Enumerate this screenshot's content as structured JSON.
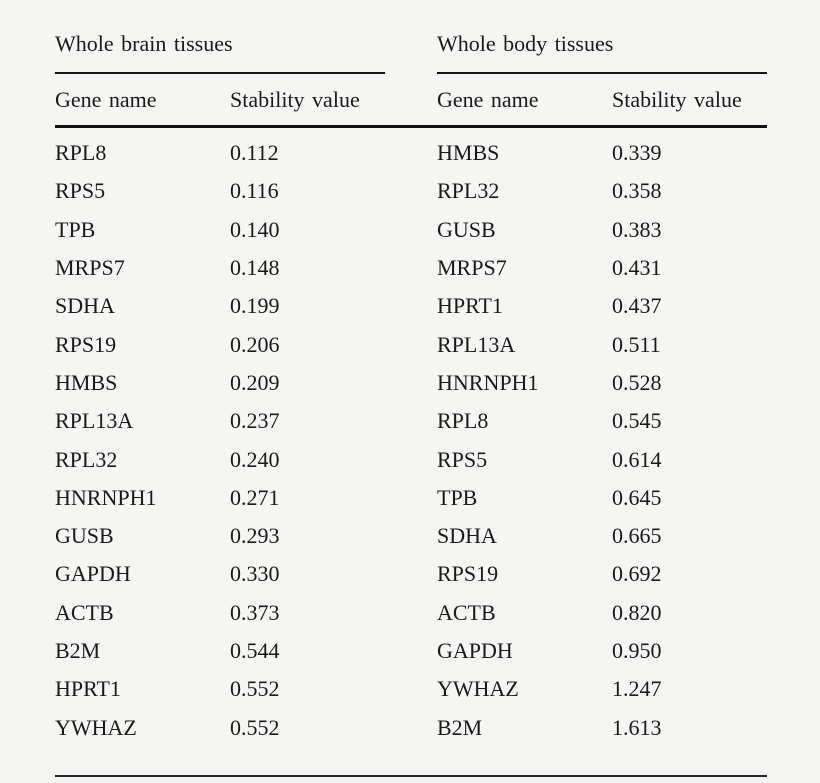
{
  "page": {
    "background_color": "#f5f5f4",
    "text_color": "#1a1a1a",
    "rule_color": "#111111"
  },
  "table": {
    "panels": [
      {
        "group_header": "Whole brain tissues",
        "columns": {
          "gene": "Gene name",
          "value": "Stability value"
        },
        "rows": [
          {
            "gene": "RPL8",
            "value": "0.112"
          },
          {
            "gene": "RPS5",
            "value": "0.116"
          },
          {
            "gene": "TPB",
            "value": "0.140"
          },
          {
            "gene": "MRPS7",
            "value": "0.148"
          },
          {
            "gene": "SDHA",
            "value": "0.199"
          },
          {
            "gene": "RPS19",
            "value": "0.206"
          },
          {
            "gene": "HMBS",
            "value": "0.209"
          },
          {
            "gene": "RPL13A",
            "value": "0.237"
          },
          {
            "gene": "RPL32",
            "value": "0.240"
          },
          {
            "gene": "HNRNPH1",
            "value": "0.271"
          },
          {
            "gene": "GUSB",
            "value": "0.293"
          },
          {
            "gene": "GAPDH",
            "value": "0.330"
          },
          {
            "gene": "ACTB",
            "value": "0.373"
          },
          {
            "gene": "B2M",
            "value": "0.544"
          },
          {
            "gene": "HPRT1",
            "value": "0.552"
          },
          {
            "gene": "YWHAZ",
            "value": "0.552"
          }
        ]
      },
      {
        "group_header": "Whole body tissues",
        "columns": {
          "gene": "Gene name",
          "value": "Stability value"
        },
        "rows": [
          {
            "gene": "HMBS",
            "value": "0.339"
          },
          {
            "gene": "RPL32",
            "value": "0.358"
          },
          {
            "gene": "GUSB",
            "value": "0.383"
          },
          {
            "gene": "MRPS7",
            "value": "0.431"
          },
          {
            "gene": "HPRT1",
            "value": "0.437"
          },
          {
            "gene": "RPL13A",
            "value": "0.511"
          },
          {
            "gene": "HNRNPH1",
            "value": "0.528"
          },
          {
            "gene": "RPL8",
            "value": "0.545"
          },
          {
            "gene": "RPS5",
            "value": "0.614"
          },
          {
            "gene": "TPB",
            "value": "0.645"
          },
          {
            "gene": "SDHA",
            "value": "0.665"
          },
          {
            "gene": "RPS19",
            "value": "0.692"
          },
          {
            "gene": "ACTB",
            "value": "0.820"
          },
          {
            "gene": "GAPDH",
            "value": "0.950"
          },
          {
            "gene": "YWHAZ",
            "value": "1.247"
          },
          {
            "gene": "B2M",
            "value": "1.613"
          }
        ]
      }
    ]
  }
}
